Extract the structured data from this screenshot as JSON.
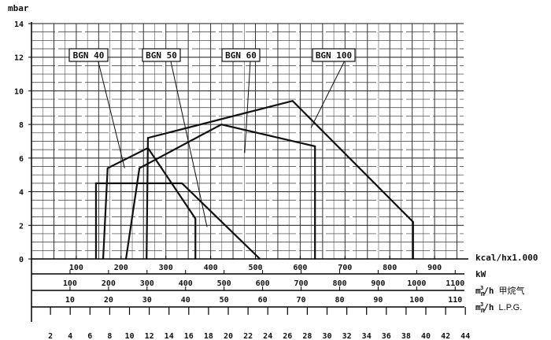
{
  "chart_data": {
    "type": "line",
    "ylabel": "mbar",
    "ylim": [
      0,
      14
    ],
    "yticks": [
      0,
      2,
      4,
      6,
      8,
      10,
      12,
      14
    ],
    "xlim_kcal": [
      0,
      965
    ],
    "grid": true,
    "x_scales": [
      {
        "unit": "kcal/hx1.000",
        "ticks": [
          100,
          200,
          300,
          400,
          500,
          600,
          700,
          800,
          900
        ],
        "labels": [
          "100",
          "200",
          "300",
          "400",
          "500",
          "600",
          "700",
          "800",
          "900"
        ]
      },
      {
        "unit": "kW",
        "ticks": [
          100,
          200,
          300,
          400,
          500,
          600,
          700,
          800,
          900,
          1000,
          1100
        ],
        "labels": [
          "100",
          "200",
          "300",
          "400",
          "500",
          "600",
          "700",
          "800",
          "900",
          "1000",
          "1100"
        ]
      },
      {
        "unit": "m",
        "unit_sub": "n",
        "unit_sup": "3",
        "unit_rest": "/h",
        "unit_note": "甲烷气",
        "ticks": [
          10,
          20,
          30,
          40,
          50,
          60,
          70,
          80,
          90,
          100,
          110
        ],
        "labels": [
          "10",
          "20",
          "30",
          "40",
          "50",
          "60",
          "70",
          "80",
          "90",
          "100",
          "110"
        ]
      },
      {
        "unit": "m",
        "unit_sub": "n",
        "unit_sup": "3",
        "unit_rest": "/h",
        "unit_note": "L.P.G.",
        "ticks": [
          2,
          4,
          6,
          8,
          10,
          12,
          14,
          16,
          18,
          20,
          22,
          24,
          26,
          28,
          30,
          32,
          34,
          36,
          38,
          40,
          42,
          44
        ],
        "labels": [
          "2",
          "4",
          "6",
          "8",
          "10",
          "12",
          "14",
          "16",
          "18",
          "20",
          "22",
          "24",
          "26",
          "28",
          "30",
          "32",
          "34",
          "36",
          "38",
          "40",
          "42",
          "44"
        ]
      }
    ],
    "series": [
      {
        "name": "BGN 40",
        "points": [
          [
            160,
            0
          ],
          [
            170,
            5.4
          ],
          [
            260,
            6.6
          ],
          [
            366,
            2.4
          ],
          [
            366,
            0
          ]
        ],
        "pointer": [
          208,
          5.4
        ]
      },
      {
        "name": "BGN 50",
        "points": [
          [
            144,
            0
          ],
          [
            144,
            4.5
          ],
          [
            336,
            4.5
          ],
          [
            510,
            0
          ]
        ],
        "pointer": [
          392,
          1.9
        ]
      },
      {
        "name": "BGN 60",
        "points": [
          [
            211,
            0
          ],
          [
            241,
            5.4
          ],
          [
            424,
            8.0
          ],
          [
            633,
            6.7
          ],
          [
            633,
            0
          ]
        ],
        "pointer": [
          476,
          6.3
        ]
      },
      {
        "name": "BGN 100",
        "points": [
          [
            257,
            0
          ],
          [
            260,
            7.2
          ],
          [
            583,
            9.4
          ],
          [
            852,
            2.2
          ],
          [
            852,
            0
          ]
        ],
        "pointer": [
          624,
          7.8
        ]
      }
    ],
    "line_color": "#111111",
    "grid_color": "#333333"
  }
}
